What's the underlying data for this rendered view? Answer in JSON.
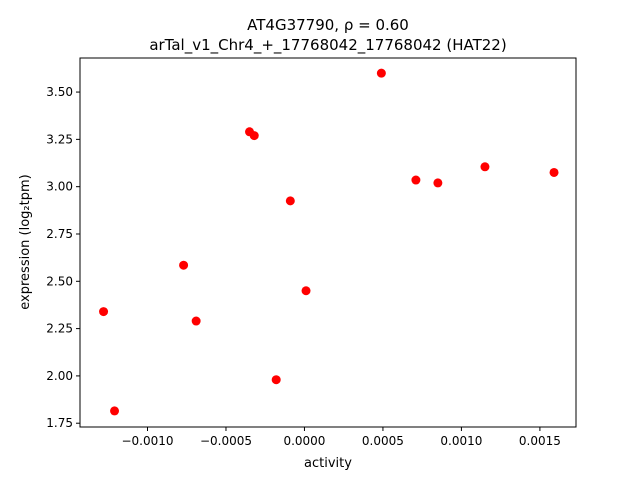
{
  "chart_data": {
    "type": "scatter",
    "title_line1": "AT4G37790, ρ = 0.60",
    "title_line2": "arTal_v1_Chr4_+_17768042_17768042 (HAT22)",
    "xlabel": "activity",
    "ylabel": "expression (log₂tpm)",
    "xlim": [
      -0.00143,
      0.00173
    ],
    "ylim": [
      1.73,
      3.68
    ],
    "xticks": [
      -0.001,
      -0.0005,
      0.0,
      0.0005,
      0.001,
      0.0015
    ],
    "xtick_labels": [
      "−0.0010",
      "−0.0005",
      "0.0000",
      "0.0005",
      "0.0010",
      "0.0015"
    ],
    "yticks": [
      1.75,
      2.0,
      2.25,
      2.5,
      2.75,
      3.0,
      3.25,
      3.5
    ],
    "ytick_labels": [
      "1.75",
      "2.00",
      "2.25",
      "2.50",
      "2.75",
      "3.00",
      "3.25",
      "3.50"
    ],
    "grid": false,
    "marker_color": "#ff0000",
    "points": [
      {
        "x": -0.00128,
        "y": 2.34
      },
      {
        "x": -0.00121,
        "y": 1.815
      },
      {
        "x": -0.00077,
        "y": 2.585
      },
      {
        "x": -0.00069,
        "y": 2.29
      },
      {
        "x": -0.00035,
        "y": 3.29
      },
      {
        "x": -0.00032,
        "y": 3.27
      },
      {
        "x": -0.00018,
        "y": 1.98
      },
      {
        "x": -9e-05,
        "y": 2.925
      },
      {
        "x": 1e-05,
        "y": 2.45
      },
      {
        "x": 0.00049,
        "y": 3.6
      },
      {
        "x": 0.00071,
        "y": 3.035
      },
      {
        "x": 0.00085,
        "y": 3.02
      },
      {
        "x": 0.00115,
        "y": 3.105
      },
      {
        "x": 0.00159,
        "y": 3.075
      }
    ]
  }
}
